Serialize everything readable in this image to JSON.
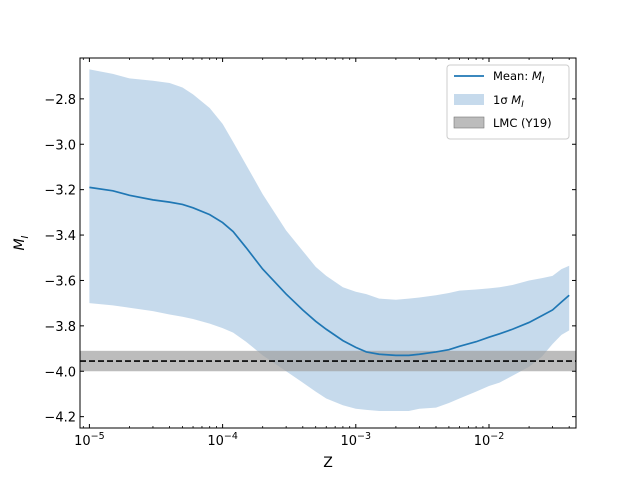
{
  "chart_data": {
    "type": "line",
    "xlabel": "Z",
    "ylabel": "M_I",
    "x_scale": "log",
    "xlim": [
      8.5e-06,
      0.045
    ],
    "ylim": [
      -4.25,
      -2.62
    ],
    "x_ticks": [
      {
        "value": 1e-05,
        "base": "10",
        "exp": "−5"
      },
      {
        "value": 0.0001,
        "base": "10",
        "exp": "−4"
      },
      {
        "value": 0.001,
        "base": "10",
        "exp": "−3"
      },
      {
        "value": 0.01,
        "base": "10",
        "exp": "−2"
      }
    ],
    "y_ticks": [
      {
        "value": -2.8,
        "label": "−2.8"
      },
      {
        "value": -3.0,
        "label": "−3.0"
      },
      {
        "value": -3.2,
        "label": "−3.2"
      },
      {
        "value": -3.4,
        "label": "−3.4"
      },
      {
        "value": -3.6,
        "label": "−3.6"
      },
      {
        "value": -3.8,
        "label": "−3.8"
      },
      {
        "value": -4.0,
        "label": "−4.0"
      },
      {
        "value": -4.2,
        "label": "−4.2"
      }
    ],
    "series": [
      {
        "name": "Mean: M_I",
        "color": "#1f77b4",
        "x": [
          1e-05,
          1.5e-05,
          2e-05,
          3e-05,
          4e-05,
          5e-05,
          6e-05,
          8e-05,
          0.0001,
          0.00012,
          0.00015,
          0.0002,
          0.0003,
          0.0004,
          0.0005,
          0.0006,
          0.0008,
          0.001,
          0.0012,
          0.0015,
          0.002,
          0.0025,
          0.003,
          0.004,
          0.005,
          0.006,
          0.008,
          0.01,
          0.012,
          0.015,
          0.02,
          0.025,
          0.03,
          0.035,
          0.04
        ],
        "y": [
          -3.19,
          -3.205,
          -3.225,
          -3.245,
          -3.255,
          -3.265,
          -3.28,
          -3.31,
          -3.345,
          -3.385,
          -3.455,
          -3.55,
          -3.66,
          -3.73,
          -3.78,
          -3.815,
          -3.865,
          -3.895,
          -3.915,
          -3.925,
          -3.93,
          -3.93,
          -3.925,
          -3.915,
          -3.905,
          -3.89,
          -3.87,
          -3.85,
          -3.835,
          -3.815,
          -3.785,
          -3.755,
          -3.73,
          -3.695,
          -3.665
        ]
      },
      {
        "name": "1σ M_I",
        "type": "band",
        "color": "#aecbe4",
        "x": [
          1e-05,
          1.5e-05,
          2e-05,
          3e-05,
          4e-05,
          5e-05,
          6e-05,
          8e-05,
          0.0001,
          0.00012,
          0.00015,
          0.0002,
          0.0003,
          0.0004,
          0.0005,
          0.0006,
          0.0008,
          0.001,
          0.0012,
          0.0015,
          0.002,
          0.0025,
          0.003,
          0.004,
          0.005,
          0.006,
          0.008,
          0.01,
          0.012,
          0.015,
          0.02,
          0.025,
          0.03,
          0.035,
          0.04
        ],
        "upper": [
          -2.67,
          -2.69,
          -2.71,
          -2.72,
          -2.73,
          -2.75,
          -2.78,
          -2.84,
          -2.91,
          -2.99,
          -3.09,
          -3.22,
          -3.38,
          -3.47,
          -3.54,
          -3.58,
          -3.63,
          -3.65,
          -3.66,
          -3.68,
          -3.685,
          -3.68,
          -3.675,
          -3.665,
          -3.655,
          -3.645,
          -3.64,
          -3.635,
          -3.63,
          -3.62,
          -3.6,
          -3.59,
          -3.58,
          -3.55,
          -3.535
        ],
        "lower": [
          -3.7,
          -3.71,
          -3.72,
          -3.735,
          -3.75,
          -3.76,
          -3.77,
          -3.79,
          -3.81,
          -3.83,
          -3.87,
          -3.93,
          -4.0,
          -4.05,
          -4.09,
          -4.12,
          -4.15,
          -4.165,
          -4.17,
          -4.175,
          -4.175,
          -4.175,
          -4.165,
          -4.16,
          -4.14,
          -4.12,
          -4.09,
          -4.065,
          -4.05,
          -4.02,
          -3.98,
          -3.935,
          -3.88,
          -3.84,
          -3.82
        ]
      },
      {
        "name": "LMC (Y19)",
        "type": "hband",
        "color": "#a0a0a0",
        "y_low": -4.0,
        "y_high": -3.91,
        "line_value": -3.955
      }
    ],
    "legend": {
      "placement": "top-right",
      "entries": [
        {
          "text": "Mean: ",
          "sym": "M",
          "sub": "I"
        },
        {
          "text": "1σ ",
          "sym": "M",
          "sub": "I"
        },
        {
          "text": "LMC (Y19)",
          "sym": "",
          "sub": ""
        }
      ]
    }
  }
}
